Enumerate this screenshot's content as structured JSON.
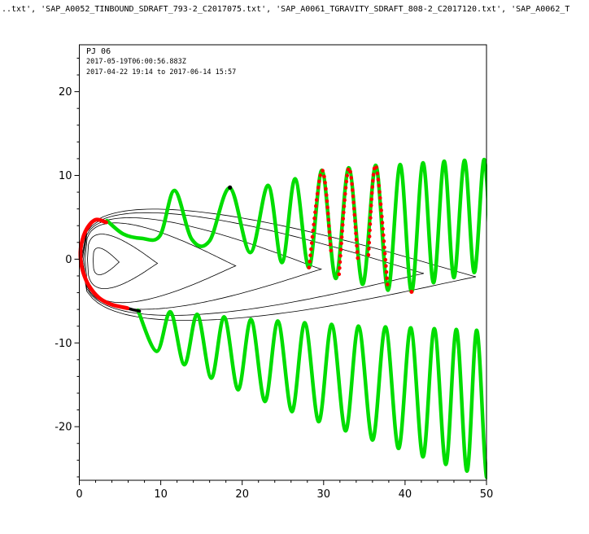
{
  "chart_data": {
    "type": "line",
    "title": "..txt', 'SAP_A0052_TINBOUND_SDRAFT_793-2_C2017075.txt', 'SAP_A0061_TGRAVITY_SDRAFT_808-2_C2017120.txt', 'SAP_A0062_T",
    "annotations": [
      "PJ 06",
      "2017-05-19T06:00:56.883Z",
      "2017-04-22 19:14 to 2017-06-14 15:57"
    ],
    "xlabel": "",
    "ylabel": "",
    "xlim": [
      0,
      50
    ],
    "ylim": [
      -26.4,
      25.6
    ],
    "x_ticks": [
      0,
      10,
      20,
      30,
      40,
      50
    ],
    "y_ticks": [
      -20,
      -10,
      0,
      10,
      20
    ],
    "minor_tick_step": 2,
    "grid": false,
    "legend_position": "top-left-inside",
    "colors": {
      "trajectory": "#00dd00",
      "highlight": "#ff0000",
      "contour": "#000000",
      "frame": "#000000"
    },
    "series": [
      {
        "name": "trajectory-north",
        "color_key": "trajectory",
        "width": 4.5,
        "points": [
          [
            3.4,
            4.6
          ],
          [
            5.4,
            3.0
          ],
          [
            7.6,
            2.5
          ],
          [
            9.9,
            2.8
          ],
          [
            11.7,
            8.2
          ],
          [
            13.8,
            2.4
          ],
          [
            16.0,
            2.2
          ],
          [
            18.5,
            8.5
          ],
          [
            21.0,
            0.8
          ],
          [
            23.2,
            8.8
          ],
          [
            24.9,
            -0.4
          ],
          [
            26.5,
            9.6
          ],
          [
            28.2,
            -1.0
          ],
          [
            29.8,
            10.6
          ],
          [
            31.5,
            -2.3
          ],
          [
            33.1,
            10.9
          ],
          [
            34.8,
            -3.0
          ],
          [
            36.4,
            11.2
          ],
          [
            37.9,
            -3.7
          ],
          [
            39.4,
            11.3
          ],
          [
            40.8,
            -3.9
          ],
          [
            42.2,
            11.5
          ],
          [
            43.5,
            -2.8
          ],
          [
            44.8,
            11.7
          ],
          [
            46.0,
            -2.2
          ],
          [
            47.3,
            11.8
          ],
          [
            48.5,
            -1.6
          ],
          [
            49.7,
            11.9
          ],
          [
            50.6,
            -1.0
          ]
        ]
      },
      {
        "name": "trajectory-south",
        "color_key": "trajectory",
        "width": 4.5,
        "points": [
          [
            7.2,
            -6.1
          ],
          [
            9.5,
            -11.0
          ],
          [
            11.2,
            -6.3
          ],
          [
            12.9,
            -12.6
          ],
          [
            14.5,
            -6.6
          ],
          [
            16.2,
            -14.2
          ],
          [
            17.8,
            -6.9
          ],
          [
            19.5,
            -15.6
          ],
          [
            21.1,
            -7.2
          ],
          [
            22.8,
            -17.0
          ],
          [
            24.4,
            -7.4
          ],
          [
            26.1,
            -18.2
          ],
          [
            27.7,
            -7.6
          ],
          [
            29.4,
            -19.4
          ],
          [
            31.0,
            -7.8
          ],
          [
            32.7,
            -20.5
          ],
          [
            34.3,
            -8.0
          ],
          [
            36.0,
            -21.6
          ],
          [
            37.6,
            -8.1
          ],
          [
            39.2,
            -22.6
          ],
          [
            40.7,
            -8.2
          ],
          [
            42.2,
            -23.6
          ],
          [
            43.6,
            -8.3
          ],
          [
            45.0,
            -24.5
          ],
          [
            46.3,
            -8.4
          ],
          [
            47.6,
            -25.3
          ],
          [
            48.8,
            -8.5
          ],
          [
            50.0,
            -26.0
          ],
          [
            50.8,
            -14.0
          ]
        ]
      },
      {
        "name": "trajectory-connector",
        "color_key": "contour",
        "width": 3.5,
        "points": [
          [
            5.9,
            -5.85
          ],
          [
            6.6,
            -6.05
          ],
          [
            7.4,
            -6.2
          ]
        ]
      },
      {
        "name": "perijove-segment",
        "color_key": "highlight",
        "width": 4.8,
        "points": [
          [
            3.3,
            4.4
          ],
          [
            2.0,
            4.7
          ],
          [
            0.9,
            3.6
          ],
          [
            0.25,
            1.8
          ],
          [
            0.15,
            0.2
          ],
          [
            0.45,
            -1.5
          ],
          [
            1.2,
            -3.2
          ],
          [
            2.4,
            -4.6
          ],
          [
            3.9,
            -5.4
          ],
          [
            5.9,
            -5.85
          ]
        ]
      }
    ],
    "red_dotted_segments": [
      [
        [
          28.2,
          -1.0
        ],
        [
          29.8,
          10.6
        ],
        [
          30.9,
          1.0
        ]
      ],
      [
        [
          31.9,
          -1.8
        ],
        [
          33.1,
          10.9
        ],
        [
          34.2,
          0.0
        ]
      ],
      [
        [
          35.5,
          0.5
        ],
        [
          36.4,
          11.2
        ],
        [
          37.9,
          -3.7
        ]
      ]
    ],
    "red_dots": [
      [
        40.8,
        -3.9
      ]
    ],
    "black_dots": [
      [
        18.5,
        8.55
      ]
    ],
    "contours": [
      {
        "xl": 1.7,
        "xr": 4.9,
        "top": 1.5,
        "bot": 1.7,
        "y0": -0.1,
        "droop": 0.25
      },
      {
        "xl": 1.0,
        "xr": 9.6,
        "top": 3.1,
        "bot": 3.4,
        "y0": 0.0,
        "droop": 0.5
      },
      {
        "xl": 0.7,
        "xr": 19.2,
        "top": 4.5,
        "bot": 5.0,
        "y0": 0.0,
        "droop": 0.8
      },
      {
        "xl": 0.5,
        "xr": 29.7,
        "top": 5.2,
        "bot": 5.7,
        "y0": 0.0,
        "droop": 1.2
      },
      {
        "xl": 0.35,
        "xr": 42.3,
        "top": 5.9,
        "bot": 6.3,
        "y0": 0.0,
        "droop": 1.7
      },
      {
        "xl": 0.25,
        "xr": 48.7,
        "top": 6.4,
        "bot": 6.8,
        "y0": 0.0,
        "droop": 2.1
      }
    ]
  }
}
